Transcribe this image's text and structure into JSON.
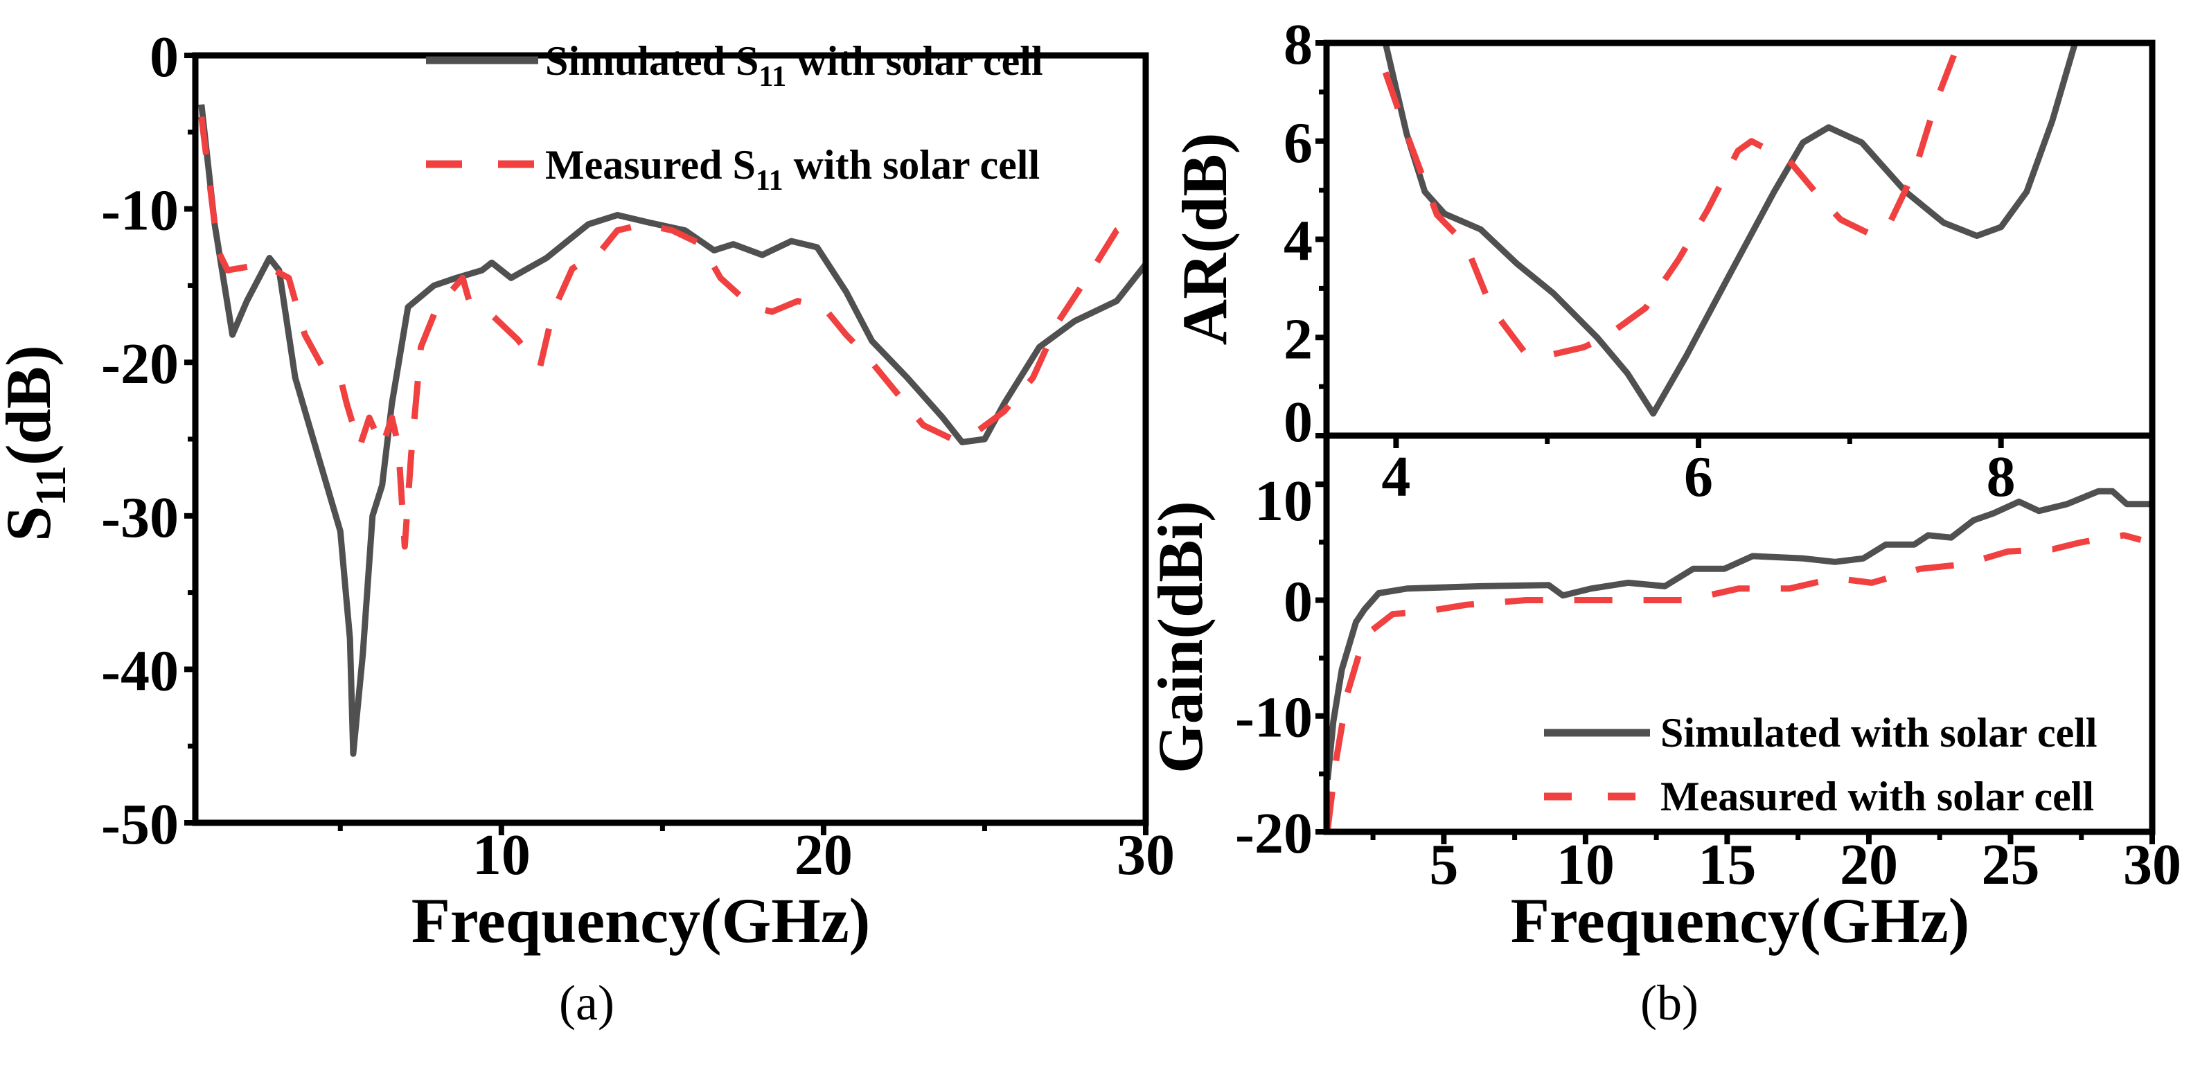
{
  "colors": {
    "simulated": "#505050",
    "measured": "#f04040",
    "axis": "#000000"
  },
  "chart_data": [
    {
      "id": "s11",
      "type": "line",
      "caption": "(a)",
      "xlabel": "Frequency(GHz)",
      "ylabel_main": "S",
      "ylabel_sub": "11",
      "ylabel_tail": "(dB)",
      "xlim": [
        0.5,
        30
      ],
      "ylim": [
        -50,
        0
      ],
      "xticks": [
        10,
        20,
        30
      ],
      "xtick_labels": [
        "10",
        "20",
        "30"
      ],
      "yticks": [
        0,
        -10,
        -20,
        -30,
        -40,
        -50
      ],
      "ytick_labels": [
        "0",
        "-10",
        "-20",
        "-30",
        "-40",
        "-50"
      ],
      "legend_placement": "top-right",
      "series": [
        {
          "name": "Simulated S11 with solar cell",
          "legend_main": "Simulated S",
          "legend_sub": "11",
          "legend_tail": " with solar cell",
          "style": "solid",
          "x": [
            0.69,
            1.1,
            1.65,
            2.1,
            2.8,
            3.1,
            3.6,
            4.3,
            5.0,
            5.3,
            5.4,
            5.7,
            6.0,
            6.3,
            6.6,
            7.1,
            7.9,
            8.6,
            9.4,
            9.7,
            10.3,
            11.4,
            12.7,
            13.6,
            14.6,
            15.7,
            16.6,
            17.2,
            18.1,
            19.0,
            19.8,
            20.7,
            21.5,
            22.6,
            23.7,
            24.3,
            25.0,
            25.6,
            26.7,
            27.8,
            29.1,
            30.0
          ],
          "y": [
            -3.2,
            -11,
            -18.2,
            -16,
            -13.2,
            -14,
            -21,
            -26,
            -31,
            -38,
            -45.5,
            -39,
            -30,
            -28,
            -22.7,
            -16.4,
            -15,
            -14.5,
            -14,
            -13.5,
            -14.5,
            -13.2,
            -11,
            -10.4,
            -10.9,
            -11.4,
            -12.7,
            -12.3,
            -13,
            -12.1,
            -12.5,
            -15.4,
            -18.6,
            -21,
            -23.6,
            -25.2,
            -25,
            -22.7,
            -19,
            -17.3,
            -16,
            -13.6
          ]
        },
        {
          "name": "Measured S11 with solar cell",
          "legend_main": "Measured S",
          "legend_sub": "11",
          "legend_tail": " with solar cell",
          "style": "dashed",
          "x": [
            0.69,
            1.2,
            1.5,
            2.6,
            3.4,
            3.9,
            4.5,
            5.0,
            5.2,
            5.6,
            5.9,
            6.3,
            6.6,
            6.8,
            7.0,
            7.2,
            7.5,
            8.0,
            8.8,
            9.0,
            9.6,
            10.5,
            11.2,
            11.6,
            12.2,
            13.1,
            13.6,
            14.4,
            15.3,
            16.2,
            16.8,
            17.8,
            18.4,
            19.2,
            20.0,
            20.7,
            21.3,
            22.2,
            23.1,
            24.0,
            24.7,
            25.6,
            26.5,
            27.3,
            28.3,
            29.1,
            29.8
          ],
          "y": [
            -4,
            -12.7,
            -14,
            -13.6,
            -14.5,
            -18.2,
            -20.5,
            -21,
            -22.7,
            -25.5,
            -23.6,
            -25.5,
            -23.6,
            -25.4,
            -32,
            -26,
            -19,
            -16.4,
            -14.5,
            -16,
            -16.7,
            -18.5,
            -20.3,
            -16.7,
            -13.9,
            -12.7,
            -11.4,
            -11,
            -11.4,
            -12.3,
            -14.5,
            -16.4,
            -16.7,
            -16,
            -16.4,
            -18.2,
            -19.5,
            -21.8,
            -24.1,
            -25,
            -24.6,
            -23.2,
            -21,
            -17.3,
            -14.1,
            -11.4,
            -10.5
          ]
        }
      ]
    },
    {
      "id": "ar",
      "type": "line",
      "ylabel": "AR(dB)",
      "xlim": [
        3.54,
        9.0
      ],
      "ylim": [
        0,
        8
      ],
      "xticks": [
        4,
        6,
        8
      ],
      "xtick_labels": [
        "4",
        "6",
        "8"
      ],
      "yticks": [
        0,
        2,
        4,
        6,
        8
      ],
      "ytick_labels": [
        "0",
        "2",
        "4",
        "6",
        "8"
      ],
      "series": [
        {
          "name": "Simulated",
          "style": "solid",
          "x": [
            3.93,
            4.07,
            4.19,
            4.32,
            4.56,
            4.8,
            5.04,
            5.33,
            5.53,
            5.7,
            5.92,
            6.2,
            6.5,
            6.69,
            6.86,
            7.08,
            7.37,
            7.62,
            7.84,
            8.0,
            8.17,
            8.34,
            8.49
          ],
          "y": [
            8,
            6.15,
            4.97,
            4.52,
            4.2,
            3.5,
            2.9,
            2.0,
            1.27,
            0.45,
            1.63,
            3.25,
            4.97,
            5.97,
            6.28,
            5.97,
            4.97,
            4.34,
            4.07,
            4.25,
            4.97,
            6.42,
            8
          ]
        },
        {
          "name": "Measured",
          "style": "dashed",
          "x": [
            3.93,
            4.07,
            4.27,
            4.46,
            4.63,
            4.85,
            5.0,
            5.24,
            5.38,
            5.65,
            5.87,
            6.06,
            6.26,
            6.35,
            6.6,
            6.79,
            6.94,
            7.16,
            7.26,
            7.43,
            7.57,
            7.72
          ],
          "y": [
            7.4,
            6.15,
            4.5,
            3.9,
            2.6,
            1.7,
            1.63,
            1.8,
            2.0,
            2.6,
            3.6,
            4.6,
            5.8,
            6.0,
            5.6,
            4.9,
            4.4,
            4.07,
            4.3,
            5.4,
            6.8,
            8
          ]
        }
      ]
    },
    {
      "id": "gain",
      "type": "line",
      "caption": "(b)",
      "xlabel": "Frequency(GHz)",
      "ylabel": "Gain(dBi)",
      "xlim": [
        0.86,
        30
      ],
      "ylim": [
        -20,
        14.2
      ],
      "xticks": [
        5,
        10,
        15,
        20,
        25,
        30
      ],
      "xtick_labels": [
        "5",
        "10",
        "15",
        "20",
        "25",
        "30"
      ],
      "yticks": [
        10,
        0,
        -10,
        -20
      ],
      "ytick_labels": [
        "10",
        "0",
        "-10",
        "-20"
      ],
      "legend_placement": "bottom-right",
      "series": [
        {
          "name": "Simulated with solar cell",
          "style": "solid",
          "x": [
            0.9,
            1.1,
            1.4,
            1.9,
            2.2,
            2.7,
            3.7,
            6.3,
            8.7,
            9.2,
            10.2,
            11.5,
            12.8,
            13.8,
            14.9,
            15.9,
            17.7,
            18.8,
            19.8,
            20.6,
            21.6,
            22.1,
            22.9,
            23.7,
            24.4,
            25.3,
            26.0,
            27.0,
            28.1,
            28.6,
            29.1,
            30.0
          ],
          "y": [
            -15.5,
            -10.5,
            -6,
            -1.9,
            -0.8,
            0.6,
            1.0,
            1.2,
            1.3,
            0.4,
            1.0,
            1.5,
            1.2,
            2.7,
            2.7,
            3.8,
            3.6,
            3.3,
            3.6,
            4.8,
            4.8,
            5.6,
            5.4,
            6.9,
            7.5,
            8.5,
            7.7,
            8.3,
            9.4,
            9.4,
            8.3,
            8.3
          ]
        },
        {
          "name": "Measured with solar cell",
          "style": "dashed",
          "x": [
            0.9,
            1.2,
            1.6,
            2.2,
            3.2,
            4.3,
            5.8,
            7.9,
            8.9,
            11.0,
            13.6,
            15.4,
            17.2,
            18.8,
            20.1,
            21.8,
            23.4,
            24.9,
            26.5,
            27.5,
            29.0,
            29.6
          ],
          "y": [
            -19.8,
            -13.8,
            -8,
            -3.1,
            -1.2,
            -1,
            -0.4,
            0,
            0,
            0,
            0,
            1.0,
            1.0,
            1.9,
            1.5,
            2.7,
            3.1,
            4.2,
            4.4,
            5.0,
            5.6,
            5.2
          ]
        }
      ]
    }
  ]
}
